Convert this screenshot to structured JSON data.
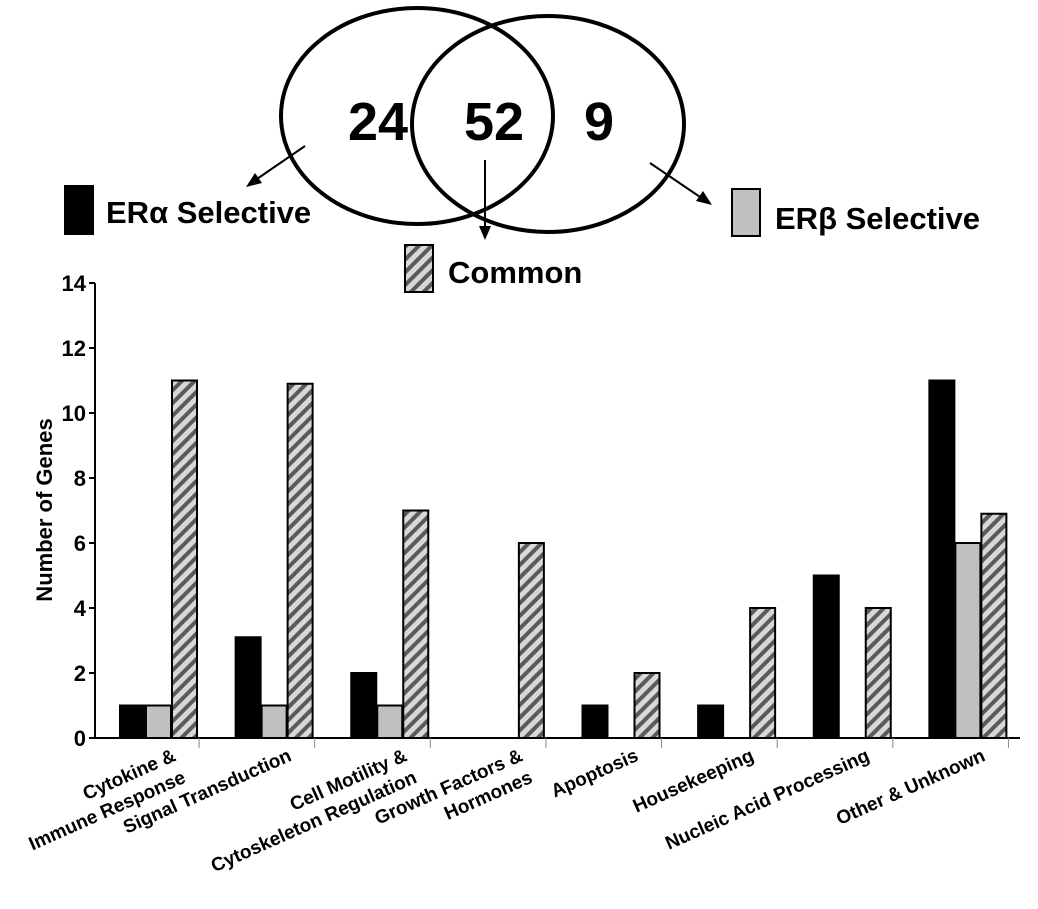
{
  "venn": {
    "left_count": "24",
    "overlap_count": "52",
    "right_count": "9"
  },
  "legend": {
    "alpha_label": "ERα Selective",
    "common_label": "Common",
    "beta_label": "ERβ Selective"
  },
  "colors": {
    "alpha": "#000000",
    "beta": "#c0c0c0",
    "common": "#a0a0a0"
  },
  "chart_data": {
    "type": "bar",
    "ylabel": "Number of Genes",
    "xlabel": "",
    "ylim": [
      0,
      14
    ],
    "yticks": [
      0,
      2,
      4,
      6,
      8,
      10,
      12,
      14
    ],
    "categories": [
      [
        "Cytokine &",
        "Immune Response"
      ],
      [
        "Signal Transduction"
      ],
      [
        "Cell Motility &",
        "Cytoskeleton Regulation"
      ],
      [
        "Growth Factors &",
        "Hormones"
      ],
      [
        "Apoptosis"
      ],
      [
        "Housekeeping"
      ],
      [
        "Nucleic Acid Processing"
      ],
      [
        "Other & Unknown"
      ]
    ],
    "series": [
      {
        "name": "ERα Selective",
        "values": [
          1,
          3.1,
          2,
          0,
          1,
          1,
          5,
          11
        ]
      },
      {
        "name": "ERβ Selective",
        "values": [
          1,
          1,
          1,
          0,
          0,
          0,
          0,
          6
        ]
      },
      {
        "name": "Common",
        "values": [
          11,
          10.9,
          7,
          6,
          2,
          4,
          4,
          6.9
        ]
      }
    ]
  }
}
